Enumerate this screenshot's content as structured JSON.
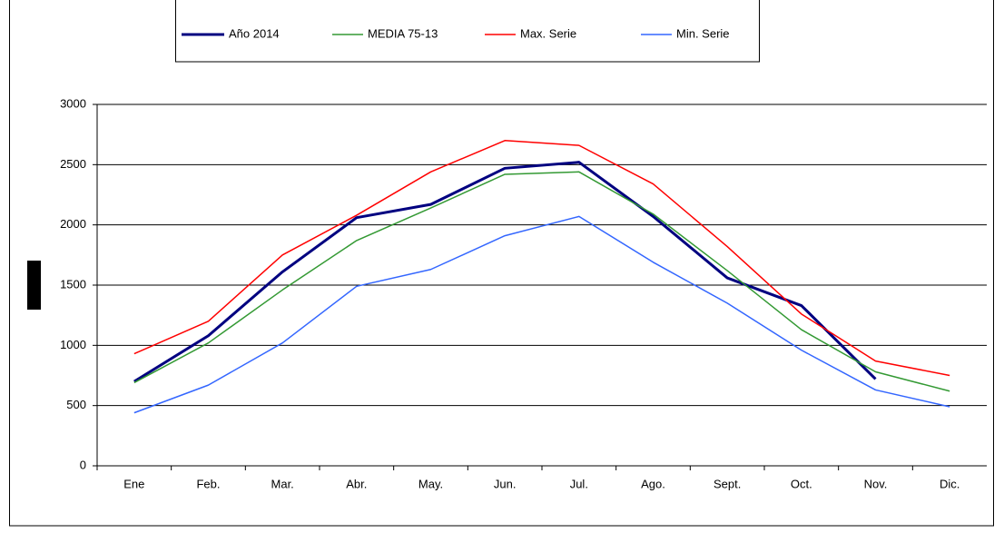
{
  "chart_data": {
    "type": "line",
    "categories": [
      "Ene",
      "Feb.",
      "Mar.",
      "Abr.",
      "May.",
      "Jun.",
      "Jul.",
      "Ago.",
      "Sept.",
      "Oct.",
      "Nov.",
      "Dic."
    ],
    "series": [
      {
        "name": "Año 2014",
        "color": "#000080",
        "values": [
          700,
          1080,
          1610,
          2060,
          2170,
          2470,
          2520,
          2070,
          1560,
          1330,
          720,
          null
        ]
      },
      {
        "name": "MEDIA 75-13",
        "color": "#339933",
        "values": [
          690,
          1020,
          1460,
          1870,
          2140,
          2420,
          2440,
          2090,
          1620,
          1130,
          780,
          620
        ]
      },
      {
        "name": "Max. Serie",
        "color": "#ff0000",
        "values": [
          930,
          1200,
          1750,
          2080,
          2440,
          2700,
          2660,
          2340,
          1820,
          1260,
          870,
          750
        ]
      },
      {
        "name": "Min. Serie",
        "color": "#3366ff",
        "values": [
          440,
          670,
          1020,
          1490,
          1630,
          1910,
          2070,
          1690,
          1350,
          960,
          630,
          490
        ]
      }
    ],
    "ylim": [
      0,
      3000
    ],
    "yticks": [
      0,
      500,
      1000,
      1500,
      2000,
      2500,
      3000
    ],
    "grid": true
  }
}
